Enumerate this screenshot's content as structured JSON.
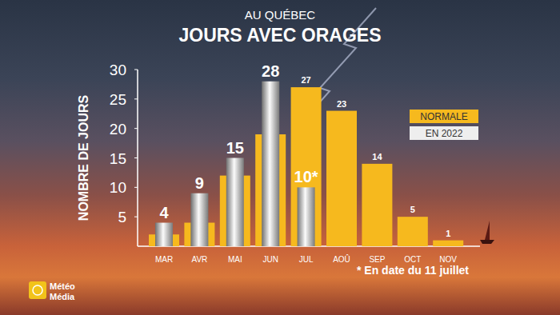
{
  "chart_data": {
    "type": "bar",
    "subtitle": "AU QUÉBEC",
    "title": "JOURS AVEC ORAGES",
    "y_label": "NOMBRE DE JOURS",
    "note": "* En date du 11 juillet",
    "source": "Météo Média",
    "categories": [
      "MAR",
      "AVR",
      "MAI",
      "JUN",
      "JUL",
      "AOÛ",
      "SEP",
      "OCT",
      "NOV"
    ],
    "series": [
      {
        "name": "NORMALE",
        "color": "#f6b91e",
        "values": [
          2,
          4,
          12,
          19,
          27,
          23,
          14,
          5,
          1
        ],
        "value_labels": [
          null,
          null,
          null,
          null,
          "27",
          "23",
          "14",
          "5",
          "1"
        ]
      },
      {
        "name": "EN 2022",
        "color": "#c9c9c9",
        "values": [
          4,
          9,
          15,
          28,
          10,
          null,
          null,
          null,
          null
        ],
        "value_labels": [
          "4",
          "9",
          "15",
          "28",
          "10*",
          null,
          null,
          null,
          null
        ]
      }
    ],
    "ylim": [
      0,
      30
    ],
    "yticks": [
      5,
      10,
      15,
      20,
      25,
      30
    ],
    "grid": false,
    "data_labels": true,
    "legend": "top-right"
  }
}
